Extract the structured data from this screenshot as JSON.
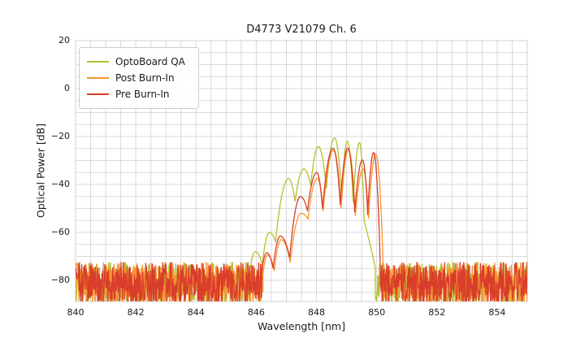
{
  "title": "D4773 V21079 Ch. 6",
  "axes": {
    "xlabel": "Wavelength [nm]",
    "ylabel": "Optical Power [dB]"
  },
  "legend": {
    "entries": [
      "OptoBoard QA",
      "Post Burn-In",
      "Pre Burn-In"
    ]
  },
  "colors": {
    "optoboard_qa": "#b5c02f",
    "post_burnin": "#f9952f",
    "pre_burnin": "#d93d2b",
    "grid": "#d9d9d9",
    "text": "#1a1a1a",
    "background": "#ffffff"
  },
  "chart_data": {
    "type": "line",
    "title": "D4773 V21079 Ch. 6",
    "xlabel": "Wavelength [nm]",
    "ylabel": "Optical Power [dB]",
    "xlim": [
      840,
      855
    ],
    "ylim": [
      -88.8,
      20
    ],
    "xticks": [
      840,
      842,
      844,
      846,
      848,
      850,
      852,
      854
    ],
    "xtick_labels": [
      "840",
      "842",
      "844",
      "846",
      "848",
      "850",
      "852",
      "854"
    ],
    "yticks": [
      20,
      0,
      -20,
      -40,
      -60,
      -80
    ],
    "ytick_labels": [
      "20",
      "0",
      "−20",
      "−40",
      "−60",
      "−80"
    ],
    "grid": {
      "x_step_nm": 0.5,
      "y_step_db": 5,
      "color": "#d9d9d9",
      "visible": true
    },
    "legend_position": "upper-left",
    "noise_floor": {
      "top_db": -72.5,
      "span_db": 18,
      "clip_db": -88.6,
      "step_nm": 0.012
    },
    "series": [
      {
        "name": "OptoBoard QA",
        "color": "#b5c02f",
        "noise_segments": [
          [
            840.0,
            845.8
          ],
          [
            849.95,
            855.0
          ]
        ],
        "peaks": [
          [
            845.97,
            -68
          ],
          [
            846.44,
            -60
          ],
          [
            847.07,
            -37.5
          ],
          [
            847.58,
            -33.5
          ],
          [
            848.06,
            -24.2
          ],
          [
            848.6,
            -20.6
          ],
          [
            849.02,
            -22.0
          ],
          [
            849.43,
            -22.5
          ]
        ],
        "valleys": [
          [
            845.8,
            -75
          ],
          [
            846.2,
            -73.5
          ],
          [
            846.64,
            -64
          ],
          [
            847.29,
            -47
          ],
          [
            847.81,
            -40.5
          ],
          [
            848.33,
            -41.5
          ],
          [
            848.84,
            -45.5
          ],
          [
            849.22,
            -47.5
          ],
          [
            849.58,
            -55
          ],
          [
            849.76,
            -64
          ],
          [
            849.95,
            -74.5
          ]
        ]
      },
      {
        "name": "Post Burn-In",
        "color": "#f9952f",
        "noise_segments": [
          [
            840.0,
            846.22
          ],
          [
            850.22,
            855.0
          ]
        ],
        "peaks": [
          [
            846.38,
            -69.5
          ],
          [
            846.83,
            -63
          ],
          [
            847.49,
            -52
          ],
          [
            848.03,
            -37.5
          ],
          [
            848.57,
            -25.8
          ],
          [
            849.06,
            -25.6
          ],
          [
            849.55,
            -33.5
          ],
          [
            849.97,
            -27.3
          ]
        ],
        "valleys": [
          [
            846.22,
            -77.5
          ],
          [
            846.6,
            -76
          ],
          [
            847.13,
            -72.5
          ],
          [
            847.72,
            -54.5
          ],
          [
            848.22,
            -51
          ],
          [
            848.82,
            -50
          ],
          [
            849.29,
            -53
          ],
          [
            849.73,
            -54
          ],
          [
            850.22,
            -76
          ]
        ]
      },
      {
        "name": "Pre Burn-In",
        "color": "#d93d2b",
        "noise_segments": [
          [
            840.0,
            846.18
          ],
          [
            850.12,
            855.0
          ]
        ],
        "peaks": [
          [
            846.35,
            -68.5
          ],
          [
            846.8,
            -61.5
          ],
          [
            847.47,
            -45
          ],
          [
            848.01,
            -35
          ],
          [
            848.55,
            -24.9
          ],
          [
            849.04,
            -24.8
          ],
          [
            849.53,
            -29.8
          ],
          [
            849.9,
            -26.7
          ]
        ],
        "valleys": [
          [
            846.18,
            -76.5
          ],
          [
            846.56,
            -75
          ],
          [
            847.11,
            -70.5
          ],
          [
            847.7,
            -51
          ],
          [
            848.2,
            -50
          ],
          [
            848.79,
            -48.5
          ],
          [
            849.27,
            -51.5
          ],
          [
            849.7,
            -52.5
          ],
          [
            850.12,
            -75
          ]
        ]
      }
    ]
  }
}
